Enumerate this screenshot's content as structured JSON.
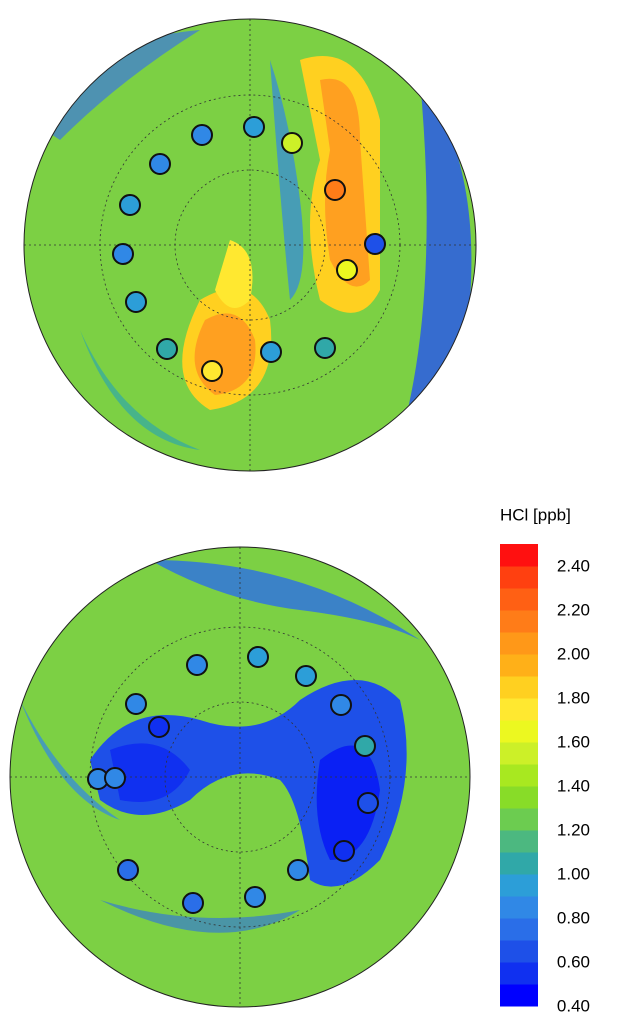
{
  "chart_data": [
    {
      "type": "map",
      "values": [
        0.85,
        1.0,
        1.55,
        0.85,
        0.95,
        2.15,
        0.7,
        0.85,
        1.7,
        0.95,
        1.05,
        0.95,
        1.05,
        1.8
      ]
    },
    {
      "type": "map",
      "values": [
        0.85,
        0.95,
        0.95,
        0.8,
        0.85,
        0.55,
        1.05,
        0.8,
        0.8,
        0.65,
        0.6,
        0.85,
        0.75,
        0.8,
        0.75
      ]
    }
  ],
  "colorbar": {
    "title": "HCl [ppb]",
    "zlim": [
      0.4,
      2.5
    ],
    "ticks": [
      {
        "value": 2.4,
        "label": "2.40"
      },
      {
        "value": 2.2,
        "label": "2.20"
      },
      {
        "value": 2.0,
        "label": "2.00"
      },
      {
        "value": 1.8,
        "label": "1.80"
      },
      {
        "value": 1.6,
        "label": "1.60"
      },
      {
        "value": 1.4,
        "label": "1.40"
      },
      {
        "value": 1.2,
        "label": "1.20"
      },
      {
        "value": 1.0,
        "label": "1.00"
      },
      {
        "value": 0.8,
        "label": "0.80"
      },
      {
        "value": 0.6,
        "label": "0.60"
      },
      {
        "value": 0.4,
        "label": "0.40"
      }
    ],
    "colors": [
      "#0000ff",
      "#1030f0",
      "#1e50e8",
      "#2a6ee8",
      "#3088e6",
      "#2c9ed8",
      "#30a8a8",
      "#4cb880",
      "#6ccc50",
      "#88dc28",
      "#a8e820",
      "#ccf028",
      "#ecf820",
      "#ffe830",
      "#ffd020",
      "#ffb018",
      "#ff9818",
      "#ff7c18",
      "#ff6014",
      "#ff4010",
      "#ff1010"
    ]
  }
}
